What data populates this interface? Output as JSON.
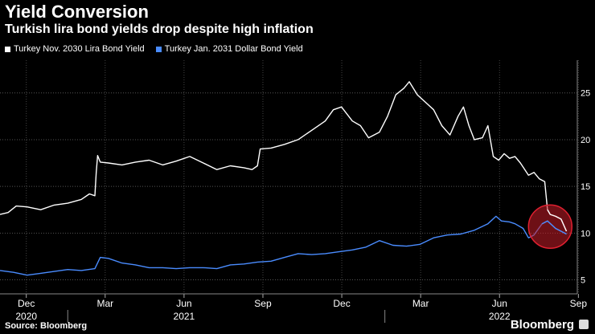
{
  "chart_data": {
    "type": "line",
    "title": "Yield Conversion",
    "subtitle": "Turkish lira bond yields drop despite high inflation",
    "x_ticks": [
      {
        "label": "Dec",
        "sub": "2020"
      },
      {
        "label": "Mar",
        "sub": ""
      },
      {
        "label": "Jun",
        "sub": "2021"
      },
      {
        "label": "Sep",
        "sub": ""
      },
      {
        "label": "Dec",
        "sub": ""
      },
      {
        "label": "Mar",
        "sub": ""
      },
      {
        "label": "Jun",
        "sub": "2022"
      },
      {
        "label": "Sep",
        "sub": ""
      }
    ],
    "xlim": [
      0,
      21.3
    ],
    "ylim": [
      3.5,
      28.5
    ],
    "y_ticks": [
      5,
      10,
      15,
      20,
      25
    ],
    "series": [
      {
        "name": "Turkey Nov. 2030 Lira Bond Yield",
        "color": "#ffffff",
        "x": [
          0,
          0.3,
          0.6,
          1.0,
          1.5,
          2.0,
          2.5,
          3.0,
          3.3,
          3.5,
          3.55,
          3.6,
          3.7,
          4.0,
          4.5,
          5.0,
          5.5,
          6.0,
          6.5,
          7.0,
          7.5,
          8.0,
          8.5,
          9.0,
          9.3,
          9.5,
          9.6,
          10.0,
          10.5,
          11.0,
          11.5,
          12.0,
          12.3,
          12.6,
          13.0,
          13.3,
          13.6,
          14.0,
          14.3,
          14.6,
          14.9,
          15.1,
          15.4,
          15.7,
          16.0,
          16.3,
          16.6,
          16.9,
          17.1,
          17.3,
          17.5,
          17.8,
          18.0,
          18.2,
          18.4,
          18.6,
          18.8,
          19.0,
          19.2,
          19.5,
          19.7,
          19.9,
          20.1,
          20.2,
          20.3,
          20.5,
          20.7,
          20.9
        ],
        "y": [
          12,
          12.2,
          12.9,
          12.8,
          12.5,
          13.0,
          13.2,
          13.6,
          14.2,
          14.0,
          16.5,
          18.3,
          17.6,
          17.5,
          17.3,
          17.6,
          17.8,
          17.3,
          17.7,
          18.2,
          17.5,
          16.8,
          17.2,
          17.0,
          16.8,
          17.2,
          19.0,
          19.1,
          19.5,
          20.0,
          21.0,
          22.0,
          23.2,
          23.5,
          22.0,
          21.5,
          20.2,
          20.8,
          22.5,
          24.8,
          25.5,
          26.2,
          24.8,
          24.0,
          23.2,
          21.5,
          20.5,
          22.5,
          23.5,
          21.5,
          20.0,
          20.2,
          21.5,
          18.2,
          17.8,
          18.5,
          18.0,
          18.2,
          17.5,
          16.2,
          16.5,
          15.8,
          15.5,
          12.5,
          12.0,
          11.8,
          11.5,
          10.2
        ],
        "values_note": ""
      },
      {
        "name": "Turkey Jan. 2031 Dollar Bond Yield",
        "color": "#4a8cff",
        "x": [
          0,
          0.5,
          1.0,
          1.5,
          2.0,
          2.5,
          3.0,
          3.5,
          3.7,
          4.0,
          4.5,
          5.0,
          5.5,
          6.0,
          6.5,
          7.0,
          7.5,
          8.0,
          8.5,
          9.0,
          9.5,
          10.0,
          10.5,
          11.0,
          11.5,
          12.0,
          12.5,
          13.0,
          13.5,
          14.0,
          14.5,
          15.0,
          15.5,
          16.0,
          16.5,
          17.0,
          17.5,
          18.0,
          18.3,
          18.5,
          18.8,
          19.0,
          19.3,
          19.5,
          19.7,
          20.0,
          20.2,
          20.5,
          20.7,
          20.9
        ],
        "y": [
          6.0,
          5.8,
          5.5,
          5.7,
          5.9,
          6.1,
          6.0,
          6.2,
          7.4,
          7.3,
          6.8,
          6.6,
          6.3,
          6.3,
          6.2,
          6.3,
          6.3,
          6.2,
          6.6,
          6.7,
          6.9,
          7.0,
          7.4,
          7.8,
          7.7,
          7.8,
          8.0,
          8.2,
          8.5,
          9.2,
          8.7,
          8.6,
          8.8,
          9.5,
          9.8,
          9.9,
          10.3,
          11.0,
          11.8,
          11.3,
          11.2,
          11.0,
          10.5,
          9.5,
          9.8,
          11.0,
          11.3,
          10.5,
          10.2,
          9.9
        ]
      }
    ],
    "annotation": "highlight circle at latest values",
    "source": "Source: Bloomberg",
    "brand": "Bloomberg"
  }
}
